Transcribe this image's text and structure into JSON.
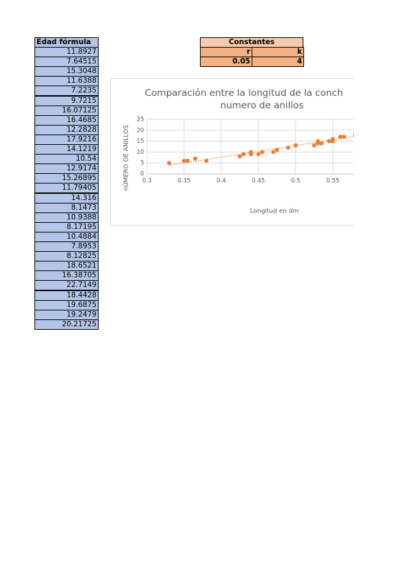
{
  "edad_table": {
    "header": "Edad fórmula",
    "rows": [
      "11.8927",
      "7.64515",
      "15.3048",
      "11.6388",
      "7.2235",
      "9.7215",
      "16.07125",
      "16.4685",
      "12.2828",
      "17.9216",
      "14.1219",
      "10.54",
      "12.9174",
      "15.26895",
      "11.79405",
      "14.316",
      "8.1473",
      "10.9388",
      "8.17195",
      "10.4884",
      "7.8953",
      "8.12825",
      "18.6521",
      "16.38705",
      "22.7149",
      "18.4428",
      "19.6875",
      "19.2479",
      "20.21725"
    ]
  },
  "constants_table": {
    "header": "Constantes",
    "columns": [
      "r",
      "k"
    ],
    "values": [
      "0.05",
      "4"
    ]
  },
  "chart_data": {
    "type": "scatter",
    "title_lines": [
      "Comparación entre la longitud de la conch",
      "numero de anillos"
    ],
    "x_label": "Longitud en dm",
    "y_label": "nÚMERO DE ANILLOS",
    "color": "#ed7d31",
    "grid": true,
    "x": [
      0.33,
      0.35,
      0.355,
      0.365,
      0.38,
      0.425,
      0.43,
      0.44,
      0.44,
      0.45,
      0.455,
      0.47,
      0.475,
      0.49,
      0.5,
      0.525,
      0.53,
      0.53,
      0.535,
      0.545,
      0.55,
      0.55,
      0.56,
      0.565,
      0.58
    ],
    "values": [
      5,
      6,
      6,
      7,
      6,
      8,
      9,
      10,
      9,
      9,
      10,
      10,
      11,
      12,
      13,
      13,
      15,
      14,
      14,
      15,
      16,
      15,
      17,
      17,
      18
    ],
    "trendline": {
      "x": [
        0.33,
        0.58
      ],
      "values": [
        3.9,
        17.2
      ]
    },
    "xlim": [
      0.3,
      0.58
    ],
    "xticks": [
      0.3,
      0.35,
      0.4,
      0.45,
      0.5,
      0.55
    ],
    "ylim": [
      0,
      25
    ],
    "yticks": [
      0,
      5,
      10,
      15,
      20,
      25
    ]
  }
}
